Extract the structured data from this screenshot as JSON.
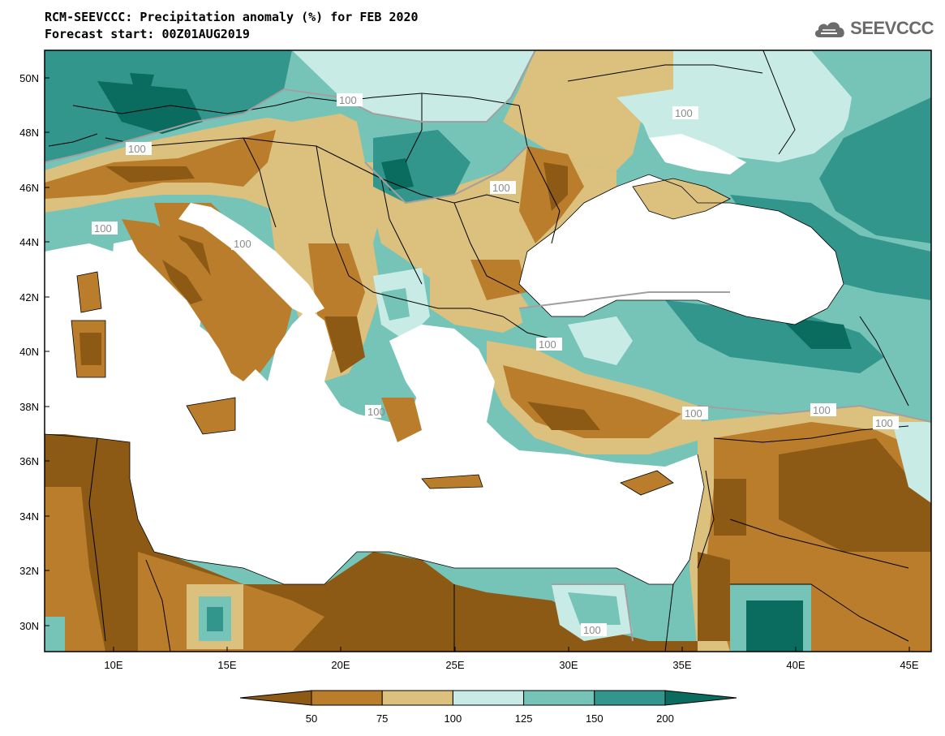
{
  "header": {
    "title_line1": "RCM-SEEVCCC: Precipitation anomaly (%) for FEB 2020",
    "title_line2": "Forecast start: 00Z01AUG2019",
    "logo_text": "SEEVCCC"
  },
  "map": {
    "lon_ticks": [
      "10E",
      "15E",
      "20E",
      "25E",
      "30E",
      "35E",
      "40E",
      "45E"
    ],
    "lat_ticks": [
      "50N",
      "48N",
      "46N",
      "44N",
      "42N",
      "40N",
      "38N",
      "36N",
      "34N",
      "32N",
      "30N"
    ],
    "contour_labels": [
      "100",
      "100",
      "100",
      "100",
      "100",
      "100",
      "100",
      "100",
      "100",
      "100",
      "100",
      "100",
      "100"
    ]
  },
  "legend": {
    "labels": [
      "50",
      "75",
      "100",
      "125",
      "150",
      "200"
    ],
    "colors": [
      "#8c5a14",
      "#b97d2c",
      "#dcc07e",
      "#c8ebe6",
      "#76c4b8",
      "#33968c",
      "#0a6b5f"
    ]
  },
  "colors": {
    "sea": "#ffffff",
    "border": "#000000",
    "contour_line": "#a0a0a0"
  }
}
